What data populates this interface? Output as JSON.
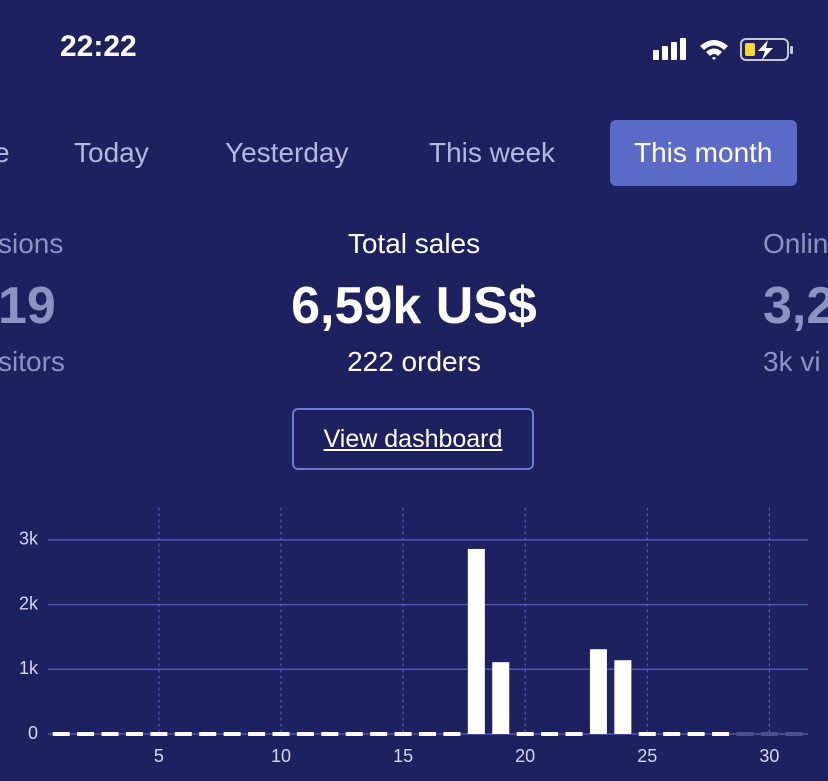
{
  "status_bar": {
    "time": "22:22"
  },
  "tabs": [
    "e",
    "Today",
    "Yesterday",
    "This week",
    "This month"
  ],
  "active_tab": 4,
  "stats": {
    "left": {
      "label": "sions",
      "value": "19",
      "sub": "sitors"
    },
    "center": {
      "label": "Total sales",
      "value": "6,59k US$",
      "sub": "222 orders"
    },
    "right": {
      "label": "Onlin",
      "value": "3,2",
      "sub": "3k vi"
    }
  },
  "button": "View dashboard",
  "chart_data": {
    "type": "bar",
    "x": [
      1,
      2,
      3,
      4,
      5,
      6,
      7,
      8,
      9,
      10,
      11,
      12,
      13,
      14,
      15,
      16,
      17,
      18,
      19,
      20,
      21,
      22,
      23,
      24,
      25,
      26,
      27,
      28,
      29,
      30,
      31
    ],
    "values": [
      0,
      0,
      0,
      0,
      0,
      0,
      0,
      0,
      0,
      0,
      0,
      0,
      0,
      0,
      0,
      0,
      0,
      2860,
      1110,
      0,
      0,
      0,
      1310,
      1140,
      0,
      0,
      0,
      0,
      0,
      0,
      0
    ],
    "colors": [
      "#ffffff",
      "#ffffff",
      "#ffffff",
      "#ffffff",
      "#ffffff",
      "#ffffff",
      "#ffffff",
      "#ffffff",
      "#ffffff",
      "#ffffff",
      "#ffffff",
      "#ffffff",
      "#ffffff",
      "#ffffff",
      "#ffffff",
      "#ffffff",
      "#ffffff",
      "#ffffff",
      "#ffffff",
      "#ffffff",
      "#ffffff",
      "#ffffff",
      "#ffffff",
      "#ffffff",
      "#ffffff",
      "#ffffff",
      "#ffffff",
      "#ffffff",
      "#4a4f8e",
      "#4a4f8e",
      "#4a4f8e"
    ],
    "xlim": [
      0.5,
      31.5
    ],
    "xticks": [
      5,
      10,
      15,
      20,
      25,
      30
    ],
    "ylim": [
      0,
      3500
    ],
    "yticks": [
      0,
      {
        "value": 1000,
        "label": "1k"
      },
      {
        "value": 2000,
        "label": "2k"
      },
      {
        "value": 3000,
        "label": "3k"
      }
    ],
    "grid": true
  }
}
